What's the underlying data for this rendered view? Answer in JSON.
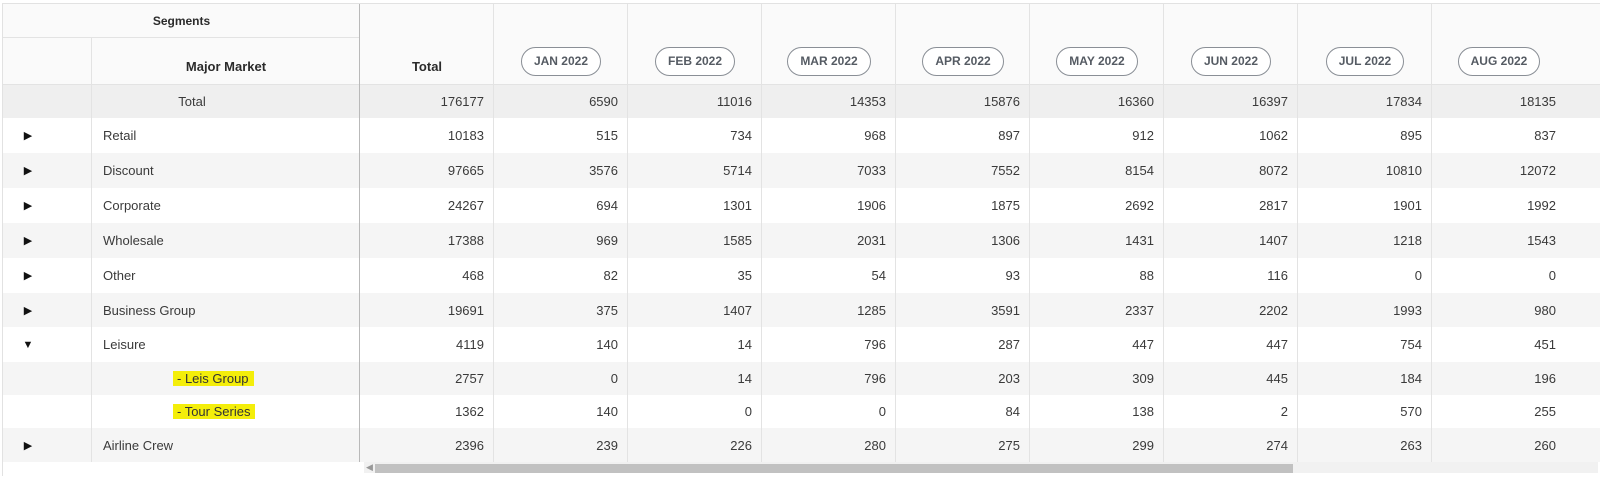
{
  "header": {
    "segments_label": "Segments",
    "major_market_label": "Major Market",
    "total_label": "Total",
    "months": [
      "JAN 2022",
      "FEB 2022",
      "MAR 2022",
      "APR 2022",
      "MAY 2022",
      "JUN 2022",
      "JUL 2022",
      "AUG 2022"
    ]
  },
  "rows": [
    {
      "label": "Total",
      "kind": "total",
      "total": "176177",
      "values": [
        "6590",
        "11016",
        "14353",
        "15876",
        "16360",
        "16397",
        "17834",
        "18135"
      ]
    },
    {
      "label": "Retail",
      "kind": "group",
      "expanded": false,
      "total": "10183",
      "values": [
        "515",
        "734",
        "968",
        "897",
        "912",
        "1062",
        "895",
        "837"
      ]
    },
    {
      "label": "Discount",
      "kind": "group",
      "expanded": false,
      "total": "97665",
      "values": [
        "3576",
        "5714",
        "7033",
        "7552",
        "8154",
        "8072",
        "10810",
        "12072"
      ]
    },
    {
      "label": "Corporate",
      "kind": "group",
      "expanded": false,
      "total": "24267",
      "values": [
        "694",
        "1301",
        "1906",
        "1875",
        "2692",
        "2817",
        "1901",
        "1992"
      ]
    },
    {
      "label": "Wholesale",
      "kind": "group",
      "expanded": false,
      "total": "17388",
      "values": [
        "969",
        "1585",
        "2031",
        "1306",
        "1431",
        "1407",
        "1218",
        "1543"
      ]
    },
    {
      "label": "Other",
      "kind": "group",
      "expanded": false,
      "total": "468",
      "values": [
        "82",
        "35",
        "54",
        "93",
        "88",
        "116",
        "0",
        "0"
      ]
    },
    {
      "label": "Business Group",
      "kind": "group",
      "expanded": false,
      "total": "19691",
      "values": [
        "375",
        "1407",
        "1285",
        "3591",
        "2337",
        "2202",
        "1993",
        "980"
      ]
    },
    {
      "label": "Leisure",
      "kind": "group",
      "expanded": true,
      "total": "4119",
      "values": [
        "140",
        "14",
        "796",
        "287",
        "447",
        "447",
        "754",
        "451"
      ]
    },
    {
      "label": "- Leis Group",
      "kind": "child",
      "total": "2757",
      "values": [
        "0",
        "14",
        "796",
        "203",
        "309",
        "445",
        "184",
        "196"
      ]
    },
    {
      "label": "- Tour Series",
      "kind": "child",
      "total": "1362",
      "values": [
        "140",
        "0",
        "0",
        "84",
        "138",
        "2",
        "570",
        "255"
      ]
    },
    {
      "label": "Airline Crew",
      "kind": "group",
      "expanded": false,
      "total": "2396",
      "values": [
        "239",
        "226",
        "280",
        "275",
        "299",
        "274",
        "263",
        "260"
      ]
    }
  ],
  "colors": {
    "highlight": "#f4ee0a",
    "row_alt": "#f5f5f5",
    "row_total": "#efefef",
    "header_bg": "#fafafa"
  },
  "icons": {
    "collapsed": "caret-right-icon",
    "expanded": "caret-down-icon"
  }
}
